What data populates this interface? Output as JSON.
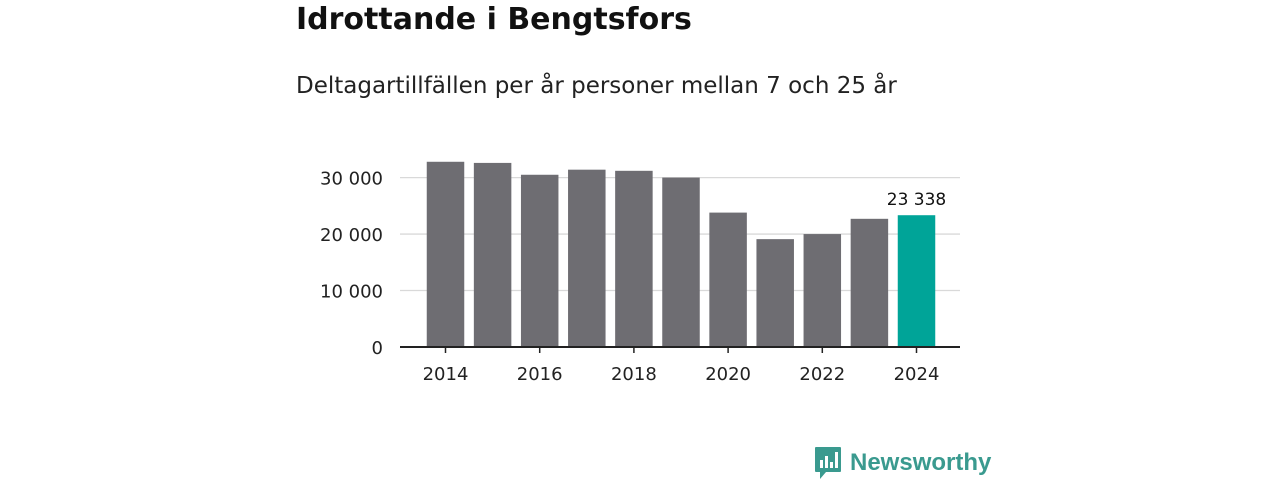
{
  "header": {
    "title": "Idrottande i Bengtsfors",
    "subtitle": "Deltagartillfällen per år personer mellan 7 och 25 år"
  },
  "brand": {
    "name": "Newsworthy"
  },
  "colors": {
    "bar": "#6e6d72",
    "highlight": "#00a498",
    "brand": "#3a9a8f",
    "grid": "#d9d9d9"
  },
  "chart_data": {
    "type": "bar",
    "title": "Idrottande i Bengtsfors",
    "subtitle": "Deltagartillfällen per år personer mellan 7 och 25 år",
    "categories": [
      "2014",
      "2015",
      "2016",
      "2017",
      "2018",
      "2019",
      "2020",
      "2021",
      "2022",
      "2023",
      "2024"
    ],
    "values": [
      32800,
      32600,
      30500,
      31400,
      31200,
      30000,
      23800,
      19100,
      20000,
      22700,
      23338
    ],
    "ylim": [
      0,
      34000
    ],
    "yticks": [
      0,
      10000,
      20000,
      30000
    ],
    "ytick_labels": [
      "0",
      "10 000",
      "20 000",
      "30 000"
    ],
    "xtick_labels": [
      "2014",
      "2016",
      "2018",
      "2020",
      "2022",
      "2024"
    ],
    "highlight_index": 10,
    "highlight_label": "23 338",
    "xlabel": "",
    "ylabel": "",
    "grid": true
  }
}
